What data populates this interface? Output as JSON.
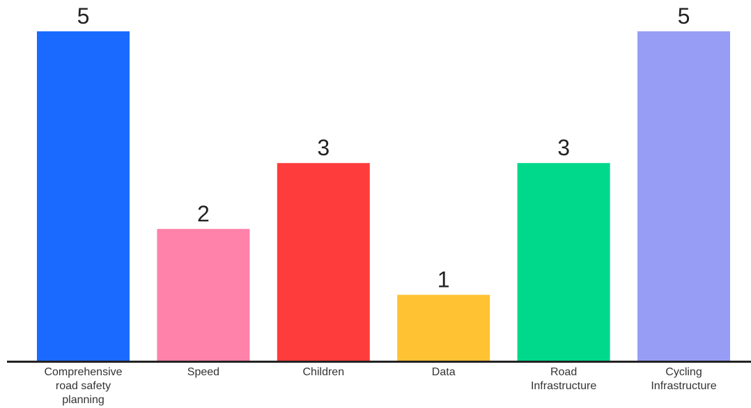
{
  "chart_data": {
    "type": "bar",
    "categories": [
      "Comprehensive road safety planning",
      "Speed",
      "Children",
      "Data",
      "Road Infrastructure",
      "Cycling Infrastructure"
    ],
    "category_label_lines": [
      [
        "Comprehensive",
        "road safety",
        "planning"
      ],
      [
        "Speed"
      ],
      [
        "Children"
      ],
      [
        "Data"
      ],
      [
        "Road",
        "Infrastructure"
      ],
      [
        "Cycling",
        "Infrastructure"
      ]
    ],
    "values": [
      5,
      2,
      3,
      1,
      3,
      5
    ],
    "colors": [
      "#1A6AFF",
      "#FF82AA",
      "#FF3C3C",
      "#FFC232",
      "#00D88C",
      "#979DF5"
    ],
    "axis_color": "#222222",
    "ylim": [
      0,
      5
    ],
    "grid": false,
    "legend": "none",
    "title": "",
    "xlabel": "",
    "ylabel": ""
  }
}
